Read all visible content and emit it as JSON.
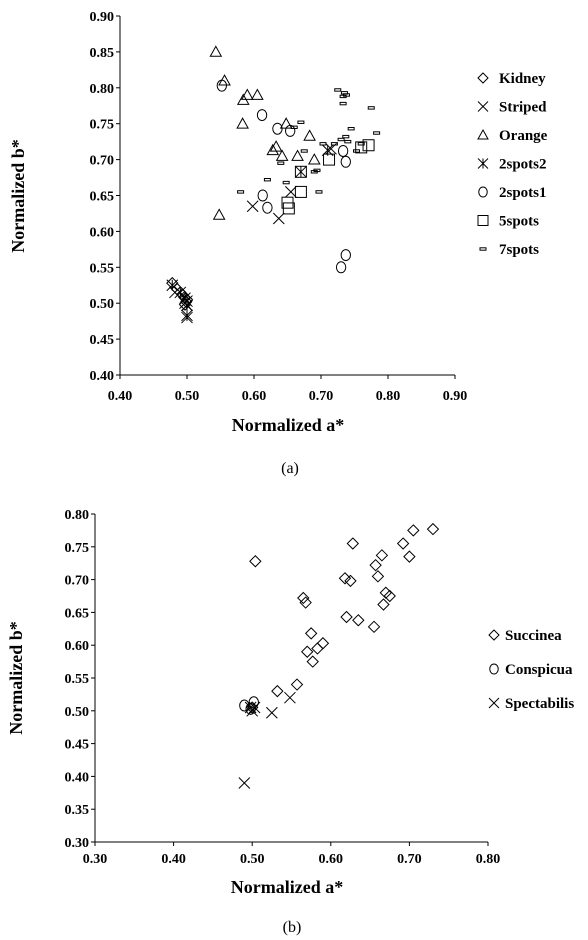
{
  "chart_data": [
    {
      "type": "scatter",
      "caption": "(a)",
      "xlabel": "Normalized a*",
      "ylabel": "Normalized b*",
      "xlim": [
        0.4,
        0.9
      ],
      "ylim": [
        0.4,
        0.9
      ],
      "xticks": [
        "0.40",
        "0.50",
        "0.60",
        "0.70",
        "0.80",
        "0.90"
      ],
      "yticks": [
        "0.40",
        "0.45",
        "0.50",
        "0.55",
        "0.60",
        "0.65",
        "0.70",
        "0.75",
        "0.80",
        "0.85",
        "0.90"
      ],
      "legend_position": "right",
      "series": [
        {
          "name": "Kidney",
          "marker": "diamond",
          "points": [
            [
              0.478,
              0.528
            ],
            [
              0.485,
              0.52
            ],
            [
              0.49,
              0.515
            ],
            [
              0.493,
              0.512
            ],
            [
              0.496,
              0.508
            ],
            [
              0.5,
              0.505
            ],
            [
              0.499,
              0.502
            ],
            [
              0.497,
              0.498
            ]
          ]
        },
        {
          "name": "Striped",
          "marker": "x",
          "points": [
            [
              0.482,
              0.515
            ],
            [
              0.497,
              0.5
            ],
            [
              0.5,
              0.497
            ],
            [
              0.5,
              0.48
            ],
            [
              0.598,
              0.635
            ],
            [
              0.637,
              0.618
            ],
            [
              0.655,
              0.655
            ],
            [
              0.715,
              0.715
            ]
          ]
        },
        {
          "name": "Orange",
          "marker": "triangle",
          "points": [
            [
              0.543,
              0.85
            ],
            [
              0.556,
              0.81
            ],
            [
              0.548,
              0.623
            ],
            [
              0.583,
              0.75
            ],
            [
              0.584,
              0.783
            ],
            [
              0.59,
              0.79
            ],
            [
              0.605,
              0.79
            ],
            [
              0.628,
              0.713
            ],
            [
              0.633,
              0.718
            ],
            [
              0.642,
              0.705
            ],
            [
              0.648,
              0.75
            ],
            [
              0.665,
              0.705
            ],
            [
              0.683,
              0.733
            ],
            [
              0.69,
              0.7
            ]
          ]
        },
        {
          "name": "2spots2",
          "marker": "asterisk",
          "points": [
            [
              0.478,
              0.525
            ],
            [
              0.49,
              0.515
            ],
            [
              0.497,
              0.507
            ],
            [
              0.5,
              0.503
            ],
            [
              0.5,
              0.497
            ],
            [
              0.5,
              0.483
            ],
            [
              0.67,
              0.683
            ],
            [
              0.71,
              0.713
            ]
          ]
        },
        {
          "name": "2spots1",
          "marker": "circle",
          "points": [
            [
              0.552,
              0.803
            ],
            [
              0.612,
              0.762
            ],
            [
              0.613,
              0.65
            ],
            [
              0.62,
              0.633
            ],
            [
              0.635,
              0.743
            ],
            [
              0.654,
              0.74
            ],
            [
              0.733,
              0.712
            ],
            [
              0.737,
              0.697
            ],
            [
              0.73,
              0.55
            ],
            [
              0.737,
              0.567
            ]
          ]
        },
        {
          "name": "5spots",
          "marker": "square",
          "points": [
            [
              0.65,
              0.64
            ],
            [
              0.652,
              0.632
            ],
            [
              0.67,
              0.683
            ],
            [
              0.67,
              0.655
            ],
            [
              0.712,
              0.7
            ],
            [
              0.76,
              0.717
            ],
            [
              0.771,
              0.72
            ]
          ]
        },
        {
          "name": "7spots",
          "marker": "dash",
          "points": [
            [
              0.58,
              0.655
            ],
            [
              0.62,
              0.672
            ],
            [
              0.64,
              0.695
            ],
            [
              0.648,
              0.668
            ],
            [
              0.66,
              0.745
            ],
            [
              0.67,
              0.752
            ],
            [
              0.675,
              0.712
            ],
            [
              0.69,
              0.683
            ],
            [
              0.694,
              0.685
            ],
            [
              0.697,
              0.655
            ],
            [
              0.703,
              0.722
            ],
            [
              0.72,
              0.722
            ],
            [
              0.725,
              0.797
            ],
            [
              0.73,
              0.728
            ],
            [
              0.733,
              0.788
            ],
            [
              0.735,
              0.793
            ],
            [
              0.738,
              0.79
            ],
            [
              0.737,
              0.732
            ],
            [
              0.733,
              0.778
            ],
            [
              0.74,
              0.725
            ],
            [
              0.745,
              0.743
            ],
            [
              0.753,
              0.712
            ],
            [
              0.76,
              0.722
            ],
            [
              0.775,
              0.772
            ],
            [
              0.783,
              0.737
            ]
          ]
        }
      ]
    },
    {
      "type": "scatter",
      "caption": "(b)",
      "xlabel": "Normalized a*",
      "ylabel": "Normalized b*",
      "xlim": [
        0.3,
        0.8
      ],
      "ylim": [
        0.3,
        0.8
      ],
      "xticks": [
        "0.30",
        "0.40",
        "0.50",
        "0.60",
        "0.70",
        "0.80"
      ],
      "yticks": [
        "0.30",
        "0.35",
        "0.40",
        "0.45",
        "0.50",
        "0.55",
        "0.60",
        "0.65",
        "0.70",
        "0.75",
        "0.80"
      ],
      "legend_position": "right",
      "series": [
        {
          "name": "Succinea",
          "marker": "diamond",
          "points": [
            [
              0.504,
              0.728
            ],
            [
              0.5,
              0.505
            ],
            [
              0.532,
              0.53
            ],
            [
              0.557,
              0.54
            ],
            [
              0.565,
              0.672
            ],
            [
              0.568,
              0.665
            ],
            [
              0.57,
              0.59
            ],
            [
              0.575,
              0.618
            ],
            [
              0.577,
              0.575
            ],
            [
              0.583,
              0.595
            ],
            [
              0.59,
              0.603
            ],
            [
              0.618,
              0.702
            ],
            [
              0.62,
              0.643
            ],
            [
              0.625,
              0.698
            ],
            [
              0.628,
              0.755
            ],
            [
              0.635,
              0.638
            ],
            [
              0.655,
              0.628
            ],
            [
              0.657,
              0.722
            ],
            [
              0.66,
              0.705
            ],
            [
              0.665,
              0.737
            ],
            [
              0.667,
              0.662
            ],
            [
              0.67,
              0.68
            ],
            [
              0.675,
              0.675
            ],
            [
              0.692,
              0.755
            ],
            [
              0.7,
              0.735
            ],
            [
              0.705,
              0.775
            ],
            [
              0.73,
              0.777
            ]
          ]
        },
        {
          "name": "Conspicua",
          "marker": "circle",
          "points": [
            [
              0.49,
              0.508
            ],
            [
              0.498,
              0.503
            ],
            [
              0.502,
              0.513
            ]
          ]
        },
        {
          "name": "Spectabilis",
          "marker": "x",
          "points": [
            [
              0.49,
              0.39
            ],
            [
              0.498,
              0.505
            ],
            [
              0.5,
              0.5
            ],
            [
              0.503,
              0.505
            ],
            [
              0.525,
              0.497
            ],
            [
              0.548,
              0.52
            ]
          ]
        }
      ]
    }
  ]
}
